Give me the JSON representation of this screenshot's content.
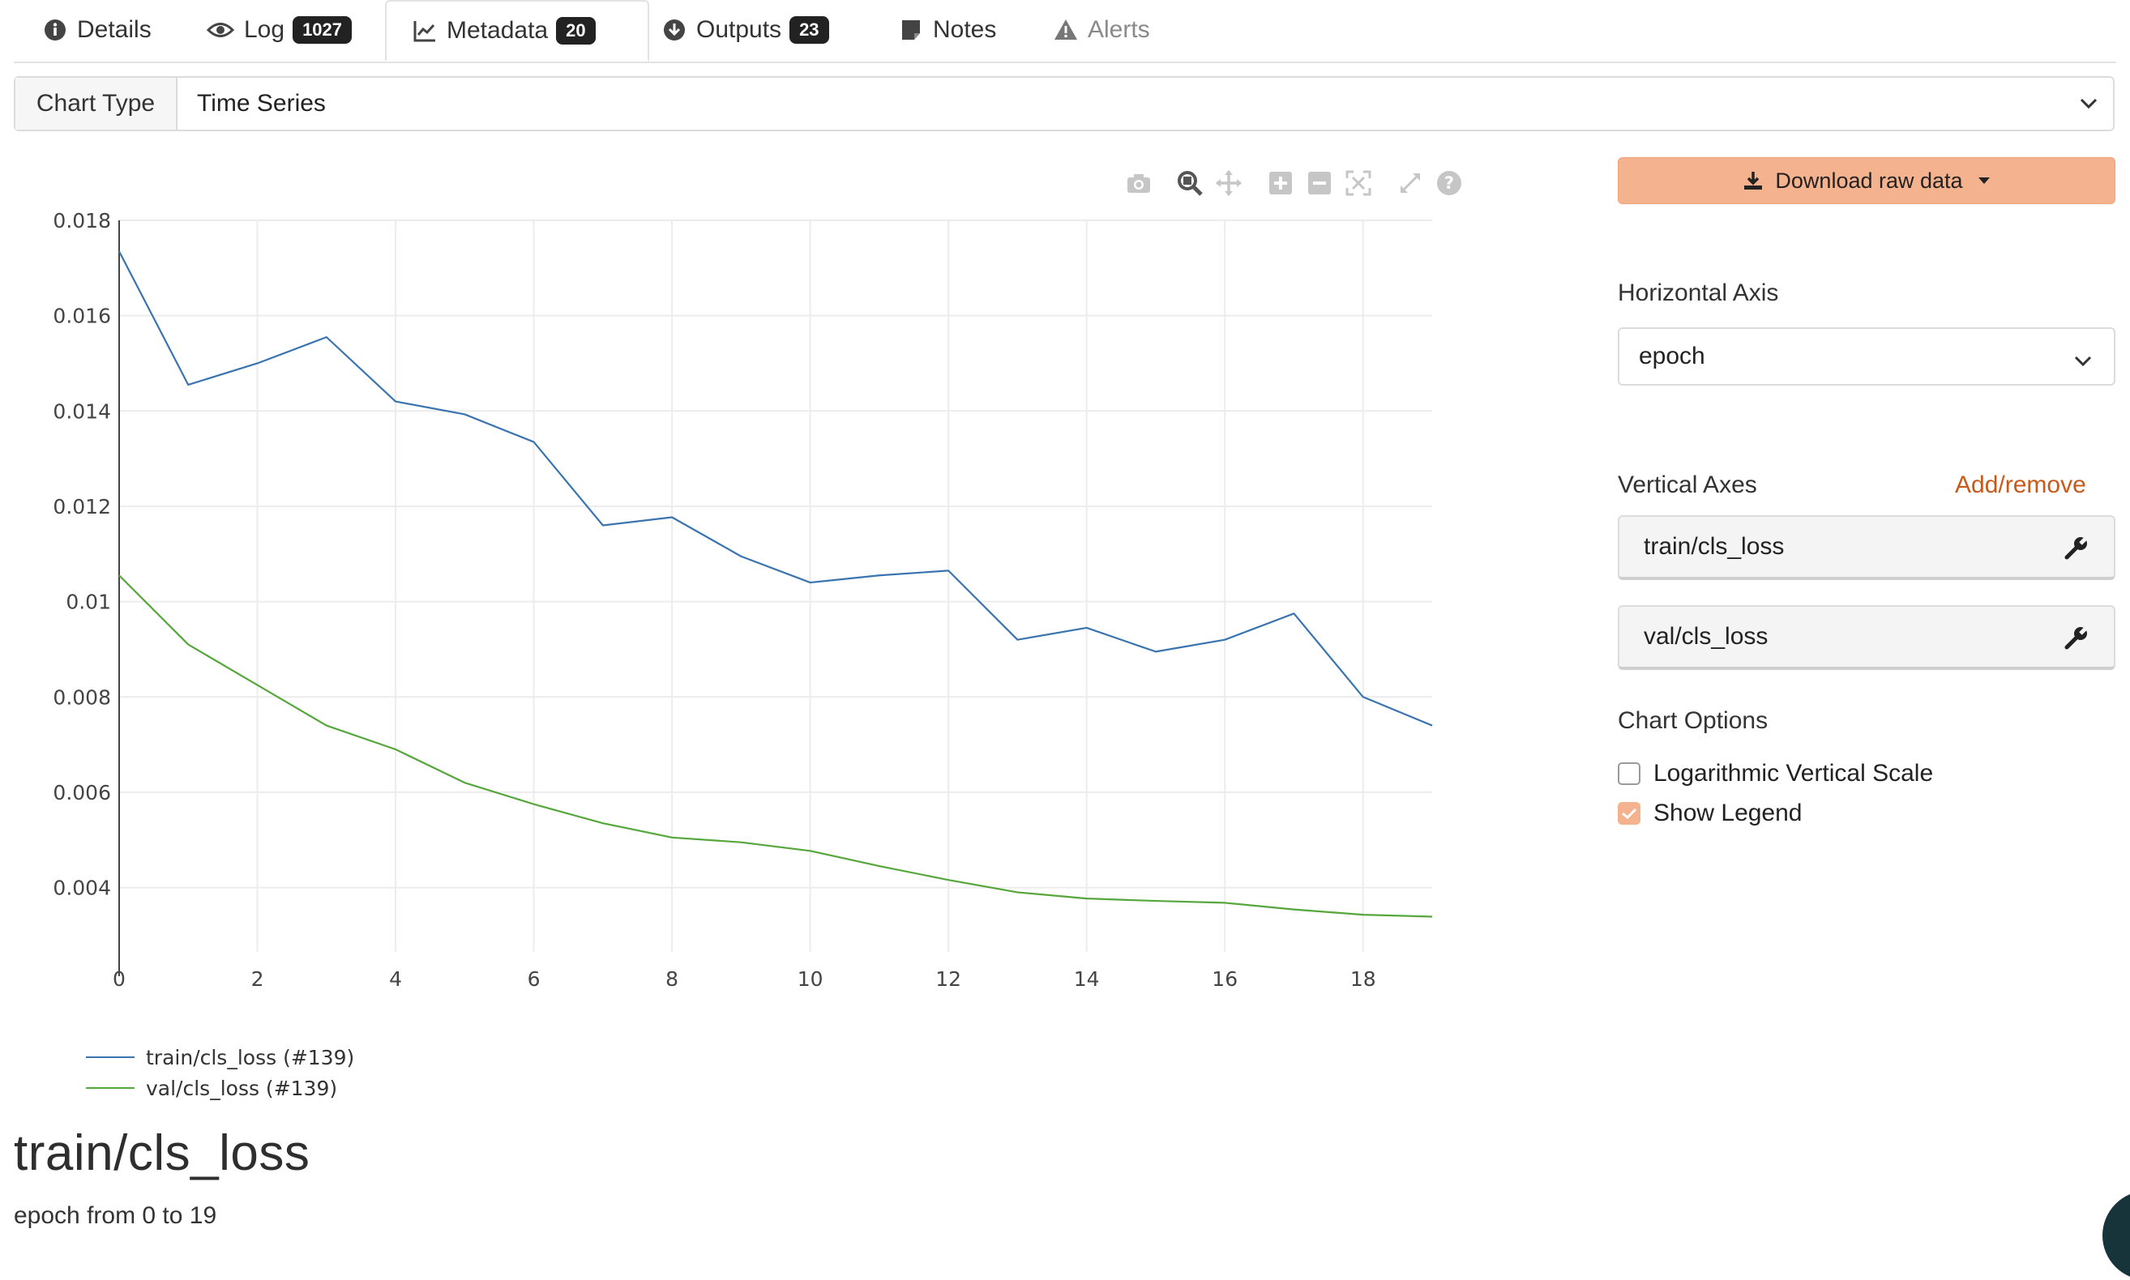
{
  "tabs": [
    {
      "label": "Details",
      "icon": "info-icon"
    },
    {
      "label": "Log",
      "icon": "eye-icon",
      "badge": "1027"
    },
    {
      "label": "Metadata",
      "icon": "chart-line-icon",
      "badge": "20",
      "active": true
    },
    {
      "label": "Outputs",
      "icon": "download-circle-icon",
      "badge": "23"
    },
    {
      "label": "Notes",
      "icon": "note-icon"
    },
    {
      "label": "Alerts",
      "icon": "warning-icon",
      "disabled": true
    }
  ],
  "chart_type": {
    "label": "Chart Type",
    "value": "Time Series"
  },
  "toolbar": {
    "icons": [
      "camera-icon",
      "zoom-icon",
      "pan-icon",
      "zoom-in-icon",
      "zoom-out-icon",
      "autoscale-icon",
      "reset-axes-icon",
      "help-icon"
    ]
  },
  "side": {
    "download_label": "Download raw data",
    "horizontal_axis_label": "Horizontal Axis",
    "horizontal_axis_value": "epoch",
    "vertical_axes_label": "Vertical Axes",
    "add_remove": "Add/remove",
    "vertical_axes": [
      "train/cls_loss",
      "val/cls_loss"
    ],
    "chart_options_label": "Chart Options",
    "options": [
      {
        "label": "Logarithmic Vertical Scale",
        "checked": false
      },
      {
        "label": "Show Legend",
        "checked": true
      }
    ]
  },
  "legend": [
    {
      "label": "train/cls_loss (#139)",
      "color": "#3a74b0"
    },
    {
      "label": "val/cls_loss (#139)",
      "color": "#55a63b"
    }
  ],
  "heading": {
    "title": "train/cls_loss",
    "subtitle": "epoch from 0 to 19"
  },
  "colors": {
    "accent": "#f5b28e",
    "link": "#c75a1a",
    "train": "#3a74b0",
    "val": "#55a63b"
  },
  "chart_data": {
    "type": "line",
    "x": [
      0,
      1,
      2,
      3,
      4,
      5,
      6,
      7,
      8,
      9,
      10,
      11,
      12,
      13,
      14,
      15,
      16,
      17,
      18,
      19
    ],
    "series": [
      {
        "name": "train/cls_loss (#139)",
        "color": "#3a74b0",
        "values": [
          0.01735,
          0.01455,
          0.015,
          0.01555,
          0.0142,
          0.01393,
          0.01335,
          0.0116,
          0.01177,
          0.01095,
          0.0104,
          0.01055,
          0.01065,
          0.0092,
          0.00945,
          0.00895,
          0.0092,
          0.00975,
          0.008,
          0.0074
        ]
      },
      {
        "name": "val/cls_loss (#139)",
        "color": "#55a63b",
        "values": [
          0.01055,
          0.0091,
          0.00825,
          0.0074,
          0.0069,
          0.0062,
          0.00575,
          0.00535,
          0.00505,
          0.00495,
          0.00477,
          0.00445,
          0.00416,
          0.0039,
          0.00377,
          0.00372,
          0.00368,
          0.00354,
          0.00343,
          0.00339
        ]
      }
    ],
    "xticks": [
      0,
      2,
      4,
      6,
      8,
      10,
      12,
      14,
      16,
      18
    ],
    "xtick_labels": [
      "0",
      "2",
      "4",
      "6",
      "8",
      "10",
      "12",
      "14",
      "16",
      "18"
    ],
    "yticks": [
      0.004,
      0.006,
      0.008,
      0.01,
      0.012,
      0.014,
      0.016,
      0.018
    ],
    "ytick_labels": [
      "0.004",
      "0.006",
      "0.008",
      "0.01",
      "0.012",
      "0.014",
      "0.016",
      "0.018"
    ],
    "xlim": [
      0,
      19
    ],
    "ylim": [
      0.00265,
      0.018
    ],
    "grid": true,
    "legend_position": "bottom-left"
  }
}
